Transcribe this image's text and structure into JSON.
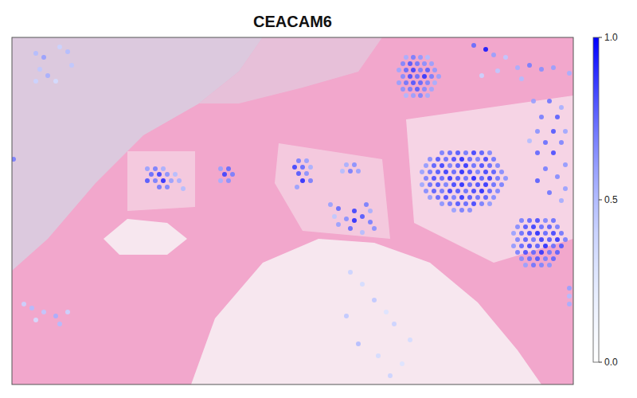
{
  "chart_data": {
    "type": "scatter",
    "title": "CEACAM6",
    "x": [
      495,
      504,
      513,
      522,
      491,
      500,
      509,
      518,
      527,
      486,
      495,
      504,
      513,
      522,
      531,
      491,
      500,
      509,
      518,
      527,
      536,
      486,
      495,
      504,
      513,
      522,
      531,
      491,
      500,
      509,
      518,
      527,
      495,
      504,
      513,
      522,
      540,
      550,
      560,
      570,
      580,
      590,
      600,
      525,
      535,
      545,
      555,
      565,
      575,
      585,
      595,
      605,
      520,
      530,
      540,
      550,
      560,
      570,
      580,
      590,
      600,
      610,
      515,
      525,
      535,
      545,
      555,
      565,
      575,
      585,
      595,
      605,
      615,
      520,
      530,
      540,
      550,
      560,
      570,
      580,
      590,
      600,
      610,
      620,
      515,
      525,
      535,
      545,
      555,
      565,
      575,
      585,
      595,
      605,
      615,
      520,
      530,
      540,
      550,
      560,
      570,
      580,
      590,
      600,
      610,
      525,
      535,
      545,
      555,
      565,
      575,
      585,
      595,
      605,
      540,
      550,
      560,
      570,
      580,
      590,
      600,
      555,
      565,
      575,
      640,
      650,
      660,
      670,
      680,
      635,
      645,
      655,
      665,
      675,
      685,
      630,
      640,
      650,
      660,
      670,
      680,
      690,
      635,
      645,
      655,
      665,
      675,
      685,
      695,
      630,
      640,
      650,
      660,
      670,
      680,
      690,
      635,
      645,
      655,
      665,
      675,
      685,
      640,
      650,
      660,
      670,
      680,
      645,
      655,
      665,
      675,
      655,
      675,
      690,
      665,
      685,
      660,
      680,
      695,
      650,
      670,
      690,
      660,
      680,
      695,
      670,
      685,
      660,
      695,
      675,
      690,
      580,
      595,
      605,
      620,
      635,
      650,
      665,
      680,
      640,
      590,
      700,
      610,
      170,
      180,
      190,
      175,
      185,
      195,
      205,
      170,
      180,
      190,
      200,
      210,
      185,
      195,
      215,
      262,
      272,
      267,
      277,
      262,
      272,
      360,
      370,
      355,
      365,
      375,
      360,
      370,
      365,
      375,
      358,
      420,
      430,
      415,
      425,
      435,
      400,
      410,
      430,
      445,
      450,
      440,
      430,
      420,
      410,
      425,
      450,
      440,
      455,
      405,
      30,
      40,
      35,
      45,
      60,
      70,
      75,
      55,
      30,
      15,
      25,
      40,
      55,
      70,
      60,
      30,
      2,
      425,
      440,
      455,
      470,
      480,
      435,
      460,
      490,
      475,
      420,
      500,
      700,
      700,
      700
    ],
    "y": [
      25,
      25,
      25,
      25,
      33,
      33,
      33,
      33,
      33,
      41,
      41,
      41,
      41,
      41,
      41,
      49,
      49,
      49,
      49,
      49,
      49,
      57,
      57,
      57,
      57,
      57,
      57,
      65,
      65,
      65,
      65,
      65,
      73,
      73,
      73,
      73,
      145,
      145,
      145,
      145,
      145,
      145,
      145,
      153,
      153,
      153,
      153,
      153,
      153,
      153,
      153,
      153,
      161,
      161,
      161,
      161,
      161,
      161,
      161,
      161,
      161,
      161,
      169,
      169,
      169,
      169,
      169,
      169,
      169,
      169,
      169,
      169,
      169,
      177,
      177,
      177,
      177,
      177,
      177,
      177,
      177,
      177,
      177,
      177,
      185,
      185,
      185,
      185,
      185,
      185,
      185,
      185,
      185,
      185,
      185,
      193,
      193,
      193,
      193,
      193,
      193,
      193,
      193,
      193,
      193,
      201,
      201,
      201,
      201,
      201,
      201,
      201,
      201,
      201,
      209,
      209,
      209,
      209,
      209,
      209,
      209,
      217,
      217,
      217,
      230,
      230,
      230,
      230,
      230,
      238,
      238,
      238,
      238,
      238,
      238,
      246,
      246,
      246,
      246,
      246,
      246,
      246,
      254,
      254,
      254,
      254,
      254,
      254,
      254,
      262,
      262,
      262,
      262,
      262,
      262,
      262,
      270,
      270,
      270,
      270,
      270,
      270,
      278,
      278,
      278,
      278,
      278,
      286,
      286,
      286,
      286,
      80,
      80,
      88,
      100,
      100,
      118,
      118,
      118,
      130,
      132,
      132,
      145,
      145,
      160,
      165,
      175,
      180,
      190,
      195,
      205,
      10,
      15,
      22,
      25,
      38,
      35,
      40,
      38,
      52,
      48,
      45,
      42,
      165,
      165,
      165,
      172,
      172,
      172,
      172,
      180,
      180,
      180,
      180,
      180,
      188,
      188,
      190,
      165,
      165,
      172,
      172,
      180,
      180,
      155,
      155,
      163,
      163,
      163,
      171,
      171,
      180,
      180,
      188,
      160,
      160,
      168,
      168,
      168,
      210,
      215,
      218,
      210,
      218,
      225,
      230,
      228,
      235,
      240,
      232,
      245,
      240,
      225,
      20,
      25,
      40,
      48,
      12,
      18,
      35,
      55,
      55,
      335,
      340,
      345,
      350,
      345,
      360,
      355,
      153,
      295,
      310,
      330,
      345,
      360,
      385,
      400,
      410,
      425,
      350,
      380,
      315,
      325,
      335
    ],
    "values": [
      0.55,
      0.7,
      0.62,
      0.5,
      0.68,
      0.8,
      0.72,
      0.65,
      0.6,
      0.58,
      0.75,
      0.85,
      0.7,
      0.78,
      0.62,
      0.66,
      0.82,
      0.74,
      0.88,
      0.7,
      0.6,
      0.6,
      0.72,
      0.8,
      0.76,
      0.68,
      0.55,
      0.64,
      0.7,
      0.78,
      0.66,
      0.58,
      0.52,
      0.6,
      0.68,
      0.56,
      0.7,
      0.75,
      0.8,
      0.72,
      0.85,
      0.78,
      0.68,
      0.66,
      0.8,
      0.74,
      0.82,
      0.9,
      0.76,
      0.7,
      0.84,
      0.72,
      0.62,
      0.78,
      0.85,
      0.7,
      0.8,
      0.88,
      0.74,
      0.82,
      0.76,
      0.68,
      0.6,
      0.72,
      0.8,
      0.86,
      0.76,
      0.9,
      0.82,
      0.7,
      0.84,
      0.78,
      0.66,
      0.7,
      0.82,
      0.76,
      0.88,
      0.8,
      0.74,
      0.92,
      0.78,
      0.86,
      0.72,
      0.64,
      0.58,
      0.74,
      0.8,
      0.7,
      0.84,
      0.9,
      0.76,
      0.82,
      0.88,
      0.74,
      0.7,
      0.66,
      0.78,
      0.72,
      0.86,
      0.8,
      0.74,
      0.84,
      0.9,
      0.76,
      0.68,
      0.62,
      0.76,
      0.82,
      0.7,
      0.88,
      0.8,
      0.74,
      0.78,
      0.66,
      0.64,
      0.72,
      0.8,
      0.76,
      0.84,
      0.7,
      0.62,
      0.6,
      0.7,
      0.66,
      0.7,
      0.76,
      0.82,
      0.68,
      0.74,
      0.66,
      0.8,
      0.86,
      0.74,
      0.78,
      0.7,
      0.6,
      0.74,
      0.82,
      0.9,
      0.76,
      0.84,
      0.72,
      0.68,
      0.78,
      0.72,
      0.86,
      0.8,
      0.88,
      0.7,
      0.62,
      0.76,
      0.84,
      0.78,
      0.9,
      0.74,
      0.8,
      0.7,
      0.82,
      0.76,
      0.88,
      0.72,
      0.78,
      0.66,
      0.74,
      0.8,
      0.7,
      0.76,
      0.6,
      0.72,
      0.68,
      0.64,
      0.6,
      0.72,
      0.55,
      0.7,
      0.78,
      0.64,
      0.8,
      0.58,
      0.5,
      0.74,
      0.68,
      0.76,
      0.82,
      0.62,
      0.7,
      0.66,
      0.78,
      0.6,
      0.72,
      0.56,
      0.75,
      0.95,
      0.6,
      0.45,
      0.55,
      0.7,
      0.65,
      0.6,
      0.5,
      0.4,
      0.55,
      0.45,
      0.6,
      0.7,
      0.55,
      0.75,
      0.85,
      0.65,
      0.5,
      0.8,
      0.7,
      0.9,
      0.6,
      0.55,
      0.72,
      0.68,
      0.5,
      0.6,
      0.75,
      0.85,
      0.7,
      0.55,
      0.65,
      0.7,
      0.6,
      0.85,
      0.75,
      0.55,
      0.8,
      0.65,
      0.9,
      0.7,
      0.6,
      0.55,
      0.65,
      0.5,
      0.7,
      0.6,
      0.6,
      0.75,
      0.85,
      0.7,
      0.55,
      0.8,
      0.9,
      0.65,
      0.6,
      0.75,
      0.7,
      0.5,
      0.65,
      0.45,
      0.5,
      0.6,
      0.45,
      0.55,
      0.4,
      0.5,
      0.45,
      0.35,
      0.4,
      0.4,
      0.5,
      0.45,
      0.55,
      0.4,
      0.5,
      0.35,
      0.7,
      0.4,
      0.35,
      0.45,
      0.3,
      0.4,
      0.5,
      0.35,
      0.3,
      0.4,
      0.45,
      0.35,
      0.6,
      0.5,
      0.55
    ],
    "xlim": [
      0,
      705
    ],
    "ylim": [
      436,
      0
    ],
    "tick_labels": false,
    "color_range": [
      0,
      1
    ],
    "color_ticks": [
      {
        "value": 0,
        "label": "0.0"
      },
      {
        "value": 0.5,
        "label": "0.5"
      },
      {
        "value": 1,
        "label": "1.0"
      }
    ]
  }
}
